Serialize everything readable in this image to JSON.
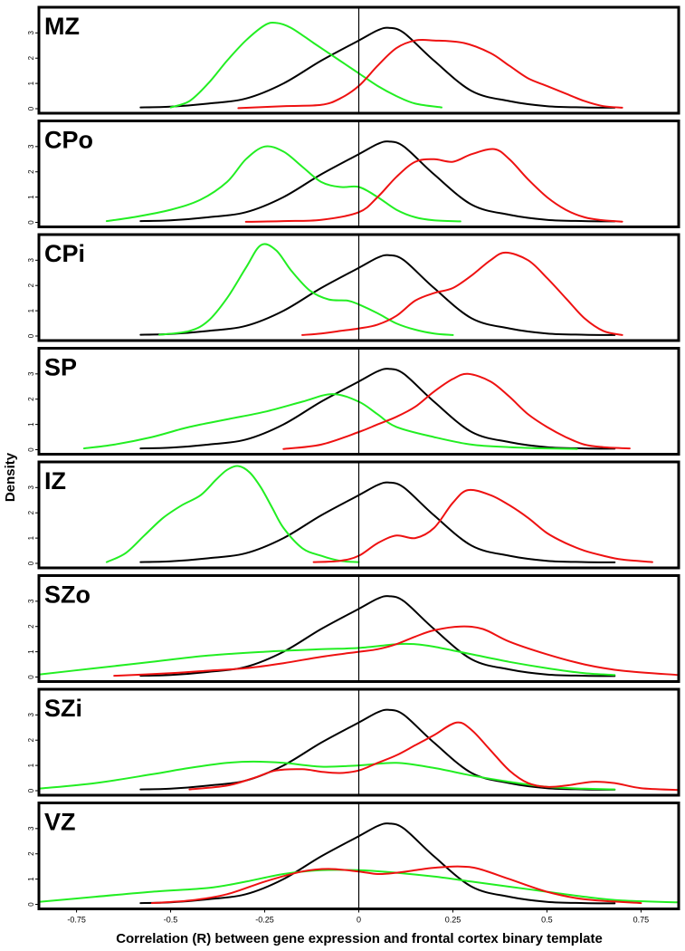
{
  "chart_data": {
    "type": "line",
    "subtype": "density",
    "xlabel": "Correlation (R) between gene expression and frontal cortex binary template",
    "ylabel": "Density",
    "xlim": [
      -0.85,
      0.85
    ],
    "ylim": [
      0,
      3.8
    ],
    "xticks": [
      -0.75,
      -0.5,
      -0.25,
      0,
      0.25,
      0.5,
      0.75
    ],
    "xtick_labels": [
      "-0.75",
      "-0.5",
      "-0.25",
      "0",
      "0.25",
      "0.5",
      "0.75"
    ],
    "yticks": [
      0,
      1,
      2,
      3
    ],
    "ytick_labels": [
      "0",
      "1",
      "2",
      "3"
    ],
    "vline_x": 0,
    "series_colors": {
      "black": "#000000",
      "green": "#22ee22",
      "red": "#ee1111"
    },
    "panels": [
      {
        "label": "MZ",
        "series": [
          {
            "name": "black",
            "x": [
              -0.58,
              -0.5,
              -0.4,
              -0.3,
              -0.2,
              -0.1,
              0,
              0.05,
              0.08,
              0.12,
              0.2,
              0.3,
              0.4,
              0.5,
              0.6,
              0.68
            ],
            "y": [
              0.05,
              0.08,
              0.2,
              0.4,
              1.0,
              1.9,
              2.7,
              3.1,
              3.2,
              3.0,
              1.9,
              0.7,
              0.3,
              0.1,
              0.05,
              0.04
            ]
          },
          {
            "name": "green",
            "x": [
              -0.5,
              -0.45,
              -0.4,
              -0.35,
              -0.3,
              -0.25,
              -0.22,
              -0.18,
              -0.12,
              -0.05,
              0,
              0.05,
              0.1,
              0.15,
              0.22
            ],
            "y": [
              0.05,
              0.3,
              1.0,
              1.9,
              2.7,
              3.3,
              3.4,
              3.2,
              2.6,
              1.9,
              1.4,
              0.9,
              0.5,
              0.2,
              0.05
            ]
          },
          {
            "name": "red",
            "x": [
              -0.32,
              -0.2,
              -0.1,
              -0.05,
              0,
              0.05,
              0.1,
              0.15,
              0.2,
              0.28,
              0.35,
              0.4,
              0.45,
              0.5,
              0.55,
              0.6,
              0.65,
              0.7
            ],
            "y": [
              0.02,
              0.1,
              0.15,
              0.4,
              0.9,
              1.7,
              2.4,
              2.7,
              2.7,
              2.6,
              2.2,
              1.7,
              1.2,
              0.9,
              0.6,
              0.3,
              0.1,
              0.04
            ]
          }
        ]
      },
      {
        "label": "CPo",
        "series": [
          {
            "name": "black",
            "x": [
              -0.58,
              -0.5,
              -0.4,
              -0.3,
              -0.2,
              -0.1,
              0,
              0.05,
              0.08,
              0.12,
              0.2,
              0.3,
              0.4,
              0.5,
              0.6,
              0.68
            ],
            "y": [
              0.05,
              0.08,
              0.2,
              0.4,
              1.0,
              1.9,
              2.7,
              3.1,
              3.2,
              3.0,
              1.9,
              0.7,
              0.3,
              0.1,
              0.05,
              0.04
            ]
          },
          {
            "name": "green",
            "x": [
              -0.67,
              -0.6,
              -0.5,
              -0.42,
              -0.35,
              -0.3,
              -0.25,
              -0.2,
              -0.15,
              -0.1,
              -0.05,
              0,
              0.05,
              0.1,
              0.15,
              0.2,
              0.27
            ],
            "y": [
              0.05,
              0.2,
              0.5,
              0.9,
              1.6,
              2.5,
              3.0,
              2.8,
              2.2,
              1.6,
              1.4,
              1.4,
              1.0,
              0.5,
              0.2,
              0.08,
              0.04
            ]
          },
          {
            "name": "red",
            "x": [
              -0.3,
              -0.2,
              -0.1,
              0,
              0.05,
              0.1,
              0.15,
              0.2,
              0.25,
              0.3,
              0.36,
              0.4,
              0.45,
              0.5,
              0.55,
              0.6,
              0.65,
              0.7
            ],
            "y": [
              0.02,
              0.05,
              0.1,
              0.4,
              1.0,
              1.8,
              2.4,
              2.5,
              2.4,
              2.7,
              2.9,
              2.5,
              1.7,
              1.0,
              0.5,
              0.2,
              0.08,
              0.03
            ]
          }
        ]
      },
      {
        "label": "CPi",
        "series": [
          {
            "name": "black",
            "x": [
              -0.58,
              -0.5,
              -0.4,
              -0.3,
              -0.2,
              -0.1,
              0,
              0.05,
              0.08,
              0.12,
              0.2,
              0.3,
              0.4,
              0.5,
              0.6,
              0.68
            ],
            "y": [
              0.05,
              0.08,
              0.2,
              0.4,
              1.0,
              1.9,
              2.7,
              3.1,
              3.2,
              3.0,
              1.9,
              0.7,
              0.3,
              0.1,
              0.05,
              0.04
            ]
          },
          {
            "name": "green",
            "x": [
              -0.53,
              -0.45,
              -0.4,
              -0.35,
              -0.3,
              -0.26,
              -0.22,
              -0.18,
              -0.13,
              -0.08,
              -0.03,
              0,
              0.05,
              0.1,
              0.15,
              0.2,
              0.25
            ],
            "y": [
              0.05,
              0.2,
              0.6,
              1.5,
              2.7,
              3.6,
              3.4,
              2.6,
              1.8,
              1.45,
              1.4,
              1.25,
              0.9,
              0.5,
              0.25,
              0.1,
              0.04
            ]
          },
          {
            "name": "red",
            "x": [
              -0.15,
              -0.1,
              -0.05,
              0,
              0.05,
              0.1,
              0.15,
              0.2,
              0.25,
              0.3,
              0.35,
              0.39,
              0.45,
              0.5,
              0.55,
              0.6,
              0.65,
              0.7
            ],
            "y": [
              0.04,
              0.1,
              0.2,
              0.3,
              0.45,
              0.8,
              1.4,
              1.7,
              1.9,
              2.4,
              3.0,
              3.3,
              3.0,
              2.3,
              1.5,
              0.7,
              0.2,
              0.04
            ]
          }
        ]
      },
      {
        "label": "SP",
        "series": [
          {
            "name": "black",
            "x": [
              -0.58,
              -0.5,
              -0.4,
              -0.3,
              -0.2,
              -0.1,
              0,
              0.05,
              0.08,
              0.12,
              0.2,
              0.3,
              0.4,
              0.5,
              0.6,
              0.68
            ],
            "y": [
              0.05,
              0.08,
              0.2,
              0.4,
              1.0,
              1.9,
              2.7,
              3.1,
              3.2,
              3.0,
              1.9,
              0.7,
              0.3,
              0.1,
              0.05,
              0.04
            ]
          },
          {
            "name": "green",
            "x": [
              -0.73,
              -0.65,
              -0.55,
              -0.45,
              -0.35,
              -0.25,
              -0.15,
              -0.07,
              0,
              0.05,
              0.1,
              0.2,
              0.3,
              0.4,
              0.5,
              0.58
            ],
            "y": [
              0.05,
              0.2,
              0.5,
              0.9,
              1.2,
              1.5,
              1.9,
              2.2,
              1.9,
              1.4,
              0.9,
              0.5,
              0.2,
              0.1,
              0.05,
              0.03
            ]
          },
          {
            "name": "red",
            "x": [
              -0.2,
              -0.1,
              0,
              0.05,
              0.1,
              0.15,
              0.2,
              0.25,
              0.29,
              0.35,
              0.4,
              0.45,
              0.5,
              0.55,
              0.6,
              0.65,
              0.72
            ],
            "y": [
              0.03,
              0.2,
              0.7,
              1.0,
              1.3,
              1.7,
              2.3,
              2.8,
              3.0,
              2.7,
              2.1,
              1.4,
              0.9,
              0.5,
              0.2,
              0.1,
              0.05
            ]
          }
        ]
      },
      {
        "label": "IZ",
        "series": [
          {
            "name": "black",
            "x": [
              -0.58,
              -0.5,
              -0.4,
              -0.3,
              -0.2,
              -0.1,
              0,
              0.05,
              0.08,
              0.12,
              0.2,
              0.3,
              0.4,
              0.5,
              0.6,
              0.68
            ],
            "y": [
              0.05,
              0.08,
              0.2,
              0.4,
              1.0,
              1.9,
              2.7,
              3.1,
              3.2,
              3.0,
              1.9,
              0.7,
              0.3,
              0.1,
              0.05,
              0.04
            ]
          },
          {
            "name": "green",
            "x": [
              -0.67,
              -0.62,
              -0.57,
              -0.52,
              -0.47,
              -0.42,
              -0.38,
              -0.35,
              -0.32,
              -0.29,
              -0.26,
              -0.23,
              -0.2,
              -0.15,
              -0.1,
              -0.05,
              0
            ],
            "y": [
              0.05,
              0.4,
              1.1,
              1.8,
              2.3,
              2.7,
              3.3,
              3.7,
              3.85,
              3.6,
              3.0,
              2.2,
              1.4,
              0.6,
              0.3,
              0.1,
              0.05
            ]
          },
          {
            "name": "red",
            "x": [
              -0.12,
              -0.05,
              0,
              0.05,
              0.1,
              0.15,
              0.2,
              0.25,
              0.29,
              0.35,
              0.4,
              0.45,
              0.5,
              0.55,
              0.6,
              0.65,
              0.7,
              0.78
            ],
            "y": [
              0.05,
              0.1,
              0.3,
              0.8,
              1.1,
              1.0,
              1.4,
              2.4,
              2.9,
              2.7,
              2.3,
              1.8,
              1.2,
              0.8,
              0.5,
              0.3,
              0.15,
              0.05
            ]
          }
        ]
      },
      {
        "label": "SZo",
        "series": [
          {
            "name": "black",
            "x": [
              -0.58,
              -0.5,
              -0.4,
              -0.3,
              -0.2,
              -0.1,
              0,
              0.05,
              0.08,
              0.12,
              0.2,
              0.3,
              0.4,
              0.5,
              0.6,
              0.68
            ],
            "y": [
              0.05,
              0.08,
              0.2,
              0.4,
              1.0,
              1.9,
              2.7,
              3.1,
              3.2,
              3.0,
              1.9,
              0.7,
              0.3,
              0.1,
              0.05,
              0.04
            ]
          },
          {
            "name": "green",
            "x": [
              -0.85,
              -0.7,
              -0.55,
              -0.4,
              -0.25,
              -0.1,
              0,
              0.1,
              0.15,
              0.2,
              0.3,
              0.4,
              0.5,
              0.6,
              0.68
            ],
            "y": [
              0.1,
              0.35,
              0.6,
              0.85,
              1.0,
              1.1,
              1.15,
              1.3,
              1.3,
              1.2,
              0.9,
              0.6,
              0.35,
              0.15,
              0.08
            ]
          },
          {
            "name": "red",
            "x": [
              -0.65,
              -0.5,
              -0.4,
              -0.3,
              -0.2,
              -0.1,
              0,
              0.05,
              0.1,
              0.15,
              0.2,
              0.27,
              0.33,
              0.4,
              0.5,
              0.6,
              0.7,
              0.85
            ],
            "y": [
              0.05,
              0.15,
              0.25,
              0.35,
              0.55,
              0.8,
              1.0,
              1.1,
              1.3,
              1.6,
              1.85,
              2.0,
              1.9,
              1.4,
              0.9,
              0.5,
              0.25,
              0.08
            ]
          }
        ]
      },
      {
        "label": "SZi",
        "series": [
          {
            "name": "black",
            "x": [
              -0.58,
              -0.5,
              -0.4,
              -0.3,
              -0.2,
              -0.1,
              0,
              0.05,
              0.08,
              0.12,
              0.2,
              0.3,
              0.4,
              0.5,
              0.6,
              0.68
            ],
            "y": [
              0.05,
              0.08,
              0.2,
              0.4,
              1.0,
              1.9,
              2.7,
              3.1,
              3.2,
              3.0,
              1.9,
              0.7,
              0.3,
              0.1,
              0.05,
              0.04
            ]
          },
          {
            "name": "green",
            "x": [
              -0.85,
              -0.7,
              -0.55,
              -0.45,
              -0.35,
              -0.28,
              -0.2,
              -0.1,
              0,
              0.1,
              0.2,
              0.3,
              0.4,
              0.5,
              0.6,
              0.68
            ],
            "y": [
              0.08,
              0.3,
              0.65,
              0.9,
              1.1,
              1.15,
              1.1,
              0.95,
              1.0,
              1.1,
              0.9,
              0.6,
              0.35,
              0.15,
              0.08,
              0.05
            ]
          },
          {
            "name": "red",
            "x": [
              -0.45,
              -0.35,
              -0.28,
              -0.22,
              -0.15,
              -0.1,
              -0.05,
              0,
              0.05,
              0.1,
              0.15,
              0.2,
              0.26,
              0.3,
              0.35,
              0.4,
              0.45,
              0.5,
              0.55,
              0.62,
              0.68,
              0.75,
              0.85
            ],
            "y": [
              0.05,
              0.2,
              0.5,
              0.8,
              0.85,
              0.75,
              0.7,
              0.8,
              1.1,
              1.4,
              1.8,
              2.2,
              2.7,
              2.4,
              1.6,
              0.8,
              0.3,
              0.15,
              0.2,
              0.35,
              0.3,
              0.1,
              0.03
            ]
          }
        ]
      },
      {
        "label": "VZ",
        "series": [
          {
            "name": "black",
            "x": [
              -0.58,
              -0.5,
              -0.4,
              -0.3,
              -0.2,
              -0.1,
              0,
              0.05,
              0.08,
              0.12,
              0.2,
              0.3,
              0.4,
              0.5,
              0.6,
              0.68
            ],
            "y": [
              0.05,
              0.08,
              0.2,
              0.4,
              1.0,
              1.9,
              2.7,
              3.1,
              3.2,
              3.0,
              1.9,
              0.7,
              0.3,
              0.1,
              0.05,
              0.04
            ]
          },
          {
            "name": "green",
            "x": [
              -0.85,
              -0.7,
              -0.55,
              -0.4,
              -0.3,
              -0.2,
              -0.1,
              0,
              0.1,
              0.2,
              0.3,
              0.4,
              0.5,
              0.6,
              0.7,
              0.85
            ],
            "y": [
              0.1,
              0.3,
              0.5,
              0.65,
              0.9,
              1.2,
              1.35,
              1.35,
              1.25,
              1.1,
              0.9,
              0.7,
              0.5,
              0.3,
              0.15,
              0.08
            ]
          },
          {
            "name": "red",
            "x": [
              -0.55,
              -0.45,
              -0.35,
              -0.25,
              -0.15,
              -0.08,
              0,
              0.05,
              0.1,
              0.15,
              0.2,
              0.27,
              0.32,
              0.4,
              0.5,
              0.6,
              0.75
            ],
            "y": [
              0.05,
              0.15,
              0.4,
              0.9,
              1.3,
              1.4,
              1.3,
              1.2,
              1.25,
              1.35,
              1.45,
              1.5,
              1.4,
              1.0,
              0.5,
              0.2,
              0.05
            ]
          }
        ]
      }
    ]
  }
}
